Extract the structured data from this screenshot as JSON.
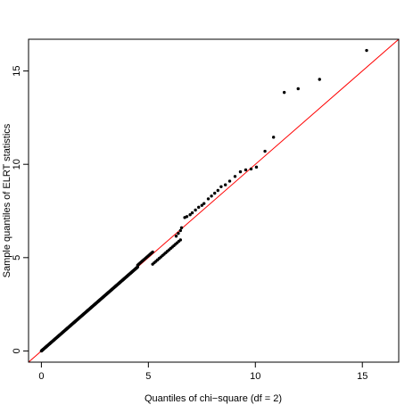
{
  "chart_data": {
    "type": "scatter",
    "title": "",
    "xlabel": "Quantiles of chi−square (df = 2)",
    "ylabel": "Sample quantiles of ELRT statistics",
    "xlim": [
      -0.6,
      16.7
    ],
    "ylim": [
      -0.6,
      16.7
    ],
    "x_ticks": [
      0,
      5,
      10,
      15
    ],
    "y_ticks": [
      0,
      5,
      10,
      15
    ],
    "x_tick_labels": [
      "0",
      "5",
      "10",
      "15"
    ],
    "y_tick_labels": [
      "0",
      "5",
      "10",
      "15"
    ],
    "grid": false,
    "legend": "none",
    "point_color": "#000000",
    "reference_line": {
      "intercept": 0,
      "slope": 1,
      "color": "#ff0000"
    },
    "series": [
      {
        "segments": [
          {
            "x_from": 0.0,
            "x_to": 4.5,
            "count": 260,
            "y_offset": 0.0
          },
          {
            "x_from": 4.5,
            "x_to": 5.2,
            "count": 14,
            "y_offset": 0.1
          },
          {
            "x_from": 5.2,
            "x_to": 6.5,
            "count": 18,
            "y_offset": -0.55
          }
        ],
        "points": [
          [
            6.3,
            6.15
          ],
          [
            6.4,
            6.3
          ],
          [
            6.5,
            6.45
          ],
          [
            6.55,
            6.6
          ],
          [
            6.7,
            7.15
          ],
          [
            6.8,
            7.2
          ],
          [
            6.95,
            7.3
          ],
          [
            7.05,
            7.4
          ],
          [
            7.2,
            7.55
          ],
          [
            7.35,
            7.7
          ],
          [
            7.5,
            7.8
          ],
          [
            7.6,
            7.9
          ],
          [
            7.8,
            8.15
          ],
          [
            7.95,
            8.3
          ],
          [
            8.1,
            8.45
          ],
          [
            8.25,
            8.6
          ],
          [
            8.4,
            8.8
          ],
          [
            8.6,
            8.9
          ],
          [
            8.8,
            9.1
          ],
          [
            9.05,
            9.35
          ],
          [
            9.3,
            9.6
          ],
          [
            9.55,
            9.7
          ],
          [
            9.8,
            9.75
          ],
          [
            10.05,
            9.85
          ],
          [
            10.45,
            10.7
          ],
          [
            10.85,
            11.45
          ],
          [
            11.35,
            13.85
          ],
          [
            12.0,
            14.05
          ],
          [
            13.0,
            14.55
          ],
          [
            15.2,
            16.1
          ]
        ]
      }
    ]
  }
}
